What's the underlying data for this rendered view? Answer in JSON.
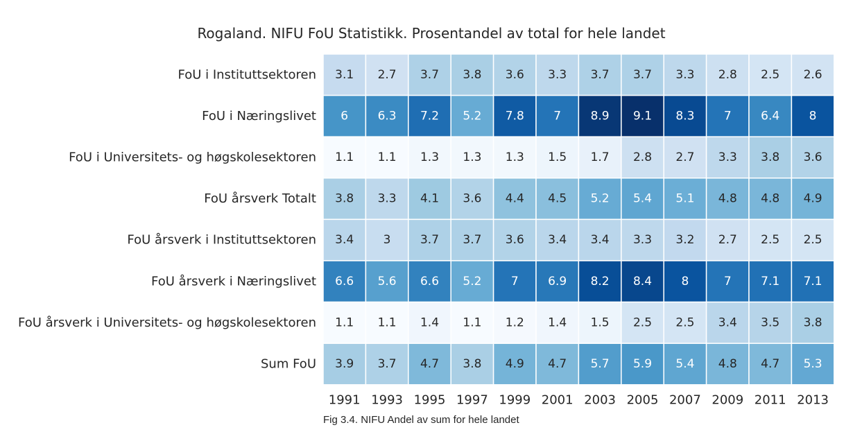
{
  "chart_data": {
    "type": "heatmap",
    "title": "Rogaland. NIFU FoU Statistikk. Prosentandel av total for hele landet",
    "caption": "Fig 3.4. NIFU Andel av sum for hele landet",
    "rows": [
      "FoU i Instituttsektoren",
      "FoU i Næringslivet",
      "FoU i Universitets- og høgskolesektoren",
      "FoU årsverk Totalt",
      "FoU årsverk i Instituttsektoren",
      "FoU årsverk i Næringslivet",
      "FoU årsverk i Universitets- og høgskolesektoren",
      "Sum FoU"
    ],
    "columns": [
      "1991",
      "1993",
      "1995",
      "1997",
      "1999",
      "2001",
      "2003",
      "2005",
      "2007",
      "2009",
      "2011",
      "2013"
    ],
    "values": [
      [
        3.1,
        2.7,
        3.7,
        3.8,
        3.6,
        3.3,
        3.7,
        3.7,
        3.3,
        2.8,
        2.5,
        2.6
      ],
      [
        6,
        6.3,
        7.2,
        5.2,
        7.8,
        7,
        8.9,
        9.1,
        8.3,
        7,
        6.4,
        8
      ],
      [
        1.1,
        1.1,
        1.3,
        1.3,
        1.3,
        1.5,
        1.7,
        2.8,
        2.7,
        3.3,
        3.8,
        3.6
      ],
      [
        3.8,
        3.3,
        4.1,
        3.6,
        4.4,
        4.5,
        5.2,
        5.4,
        5.1,
        4.8,
        4.8,
        4.9
      ],
      [
        3.4,
        3,
        3.7,
        3.7,
        3.6,
        3.4,
        3.4,
        3.3,
        3.2,
        2.7,
        2.5,
        2.5
      ],
      [
        6.6,
        5.6,
        6.6,
        5.2,
        7,
        6.9,
        8.2,
        8.4,
        8,
        7,
        7.1,
        7.1
      ],
      [
        1.1,
        1.1,
        1.4,
        1.1,
        1.2,
        1.4,
        1.5,
        2.5,
        2.5,
        3.4,
        3.5,
        3.8
      ],
      [
        3.9,
        3.7,
        4.7,
        3.8,
        4.9,
        4.7,
        5.7,
        5.9,
        5.4,
        4.8,
        4.7,
        5.3
      ]
    ],
    "colormap": "Blues",
    "vmin": 1.1,
    "vmax": 9.1,
    "colorbar": false,
    "grid": false,
    "cell_separator_color": "#ffffff",
    "text_color_dark": "#262626",
    "text_color_light": "#ffffff"
  }
}
